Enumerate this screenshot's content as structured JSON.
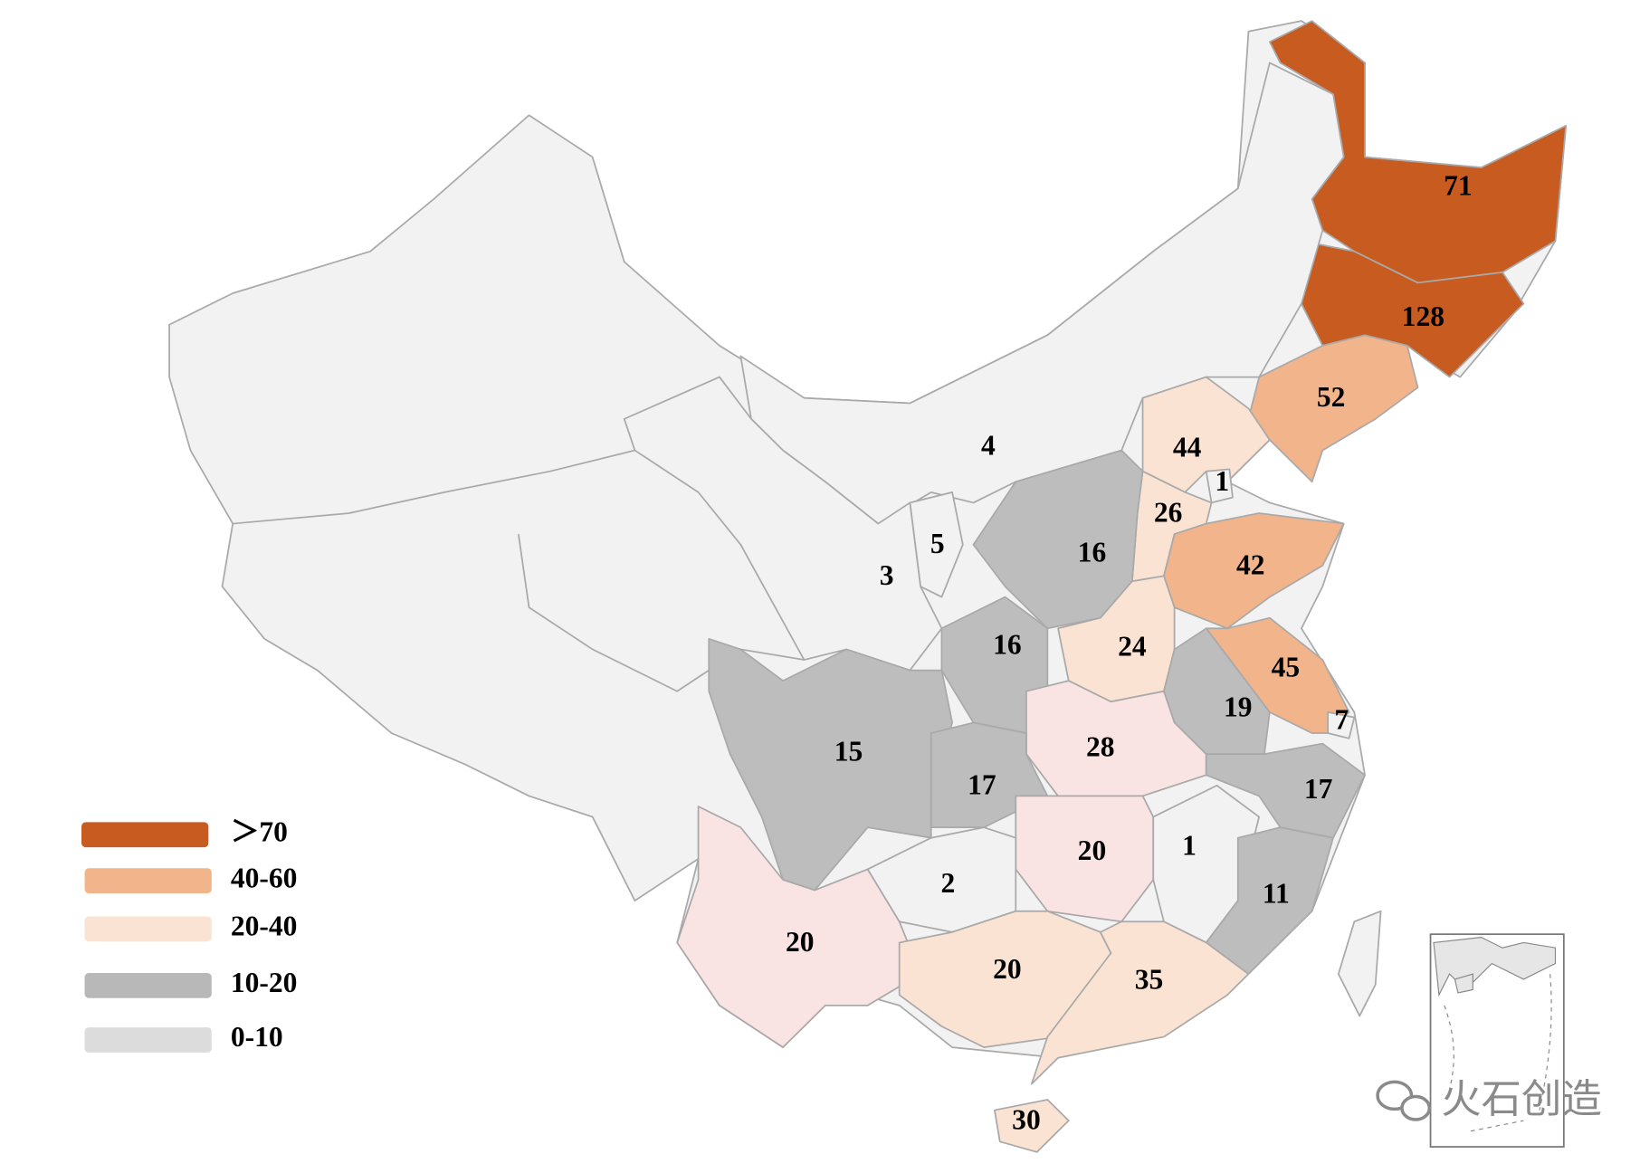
{
  "legend": [
    {
      "label": "＞70",
      "color": "#c75b20"
    },
    {
      "label": "40-60",
      "color": "#f2b48a"
    },
    {
      "label": "20-40",
      "color": "#fbe3d3"
    },
    {
      "label": "10-20",
      "color": "#b8b8b8"
    },
    {
      "label": "0-10",
      "color": "#dcdcdc"
    }
  ],
  "regions": [
    {
      "value": 71,
      "color": "#c75b20"
    },
    {
      "value": 128,
      "color": "#c75b20"
    },
    {
      "value": 52,
      "color": "#f2b48a"
    },
    {
      "value": 4,
      "color": "#f2f2f2"
    },
    {
      "value": 44,
      "color": "#fbe3d3"
    },
    {
      "value": 1,
      "color": "#f2f2f2"
    },
    {
      "value": 26,
      "color": "#fbe3d3"
    },
    {
      "value": 5,
      "color": "#f2f2f2"
    },
    {
      "value": 3,
      "color": "#f2f2f2"
    },
    {
      "value": 16,
      "color": "#bdbdbd"
    },
    {
      "value": 42,
      "color": "#f2b48a"
    },
    {
      "value": 16,
      "color": "#bdbdbd"
    },
    {
      "value": 24,
      "color": "#fbe3d3"
    },
    {
      "value": 45,
      "color": "#f2b48a"
    },
    {
      "value": 19,
      "color": "#bdbdbd"
    },
    {
      "value": 7,
      "color": "#f2f2f2"
    },
    {
      "value": 28,
      "color": "#fae3e3"
    },
    {
      "value": 15,
      "color": "#bdbdbd"
    },
    {
      "value": 17,
      "color": "#bdbdbd"
    },
    {
      "value": 17,
      "color": "#bdbdbd"
    },
    {
      "value": 20,
      "color": "#fae3e3"
    },
    {
      "value": 1,
      "color": "#f2f2f2"
    },
    {
      "value": 2,
      "color": "#f2f2f2"
    },
    {
      "value": 11,
      "color": "#bdbdbd"
    },
    {
      "value": 20,
      "color": "#fae3e3"
    },
    {
      "value": 20,
      "color": "#fbe3d3"
    },
    {
      "value": 35,
      "color": "#fbe3d3"
    },
    {
      "value": 30,
      "color": "#fbe3d3"
    }
  ],
  "watermark": "火石创造"
}
